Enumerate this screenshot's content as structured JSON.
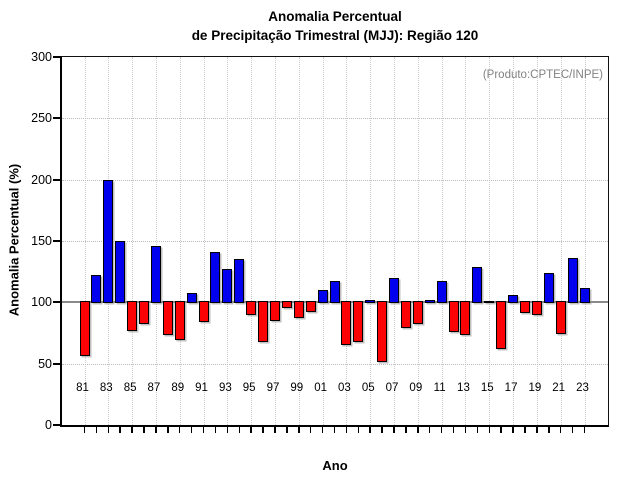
{
  "title": {
    "line1": "Anomalia Percentual",
    "line2": "de Precipitação Trimestral (MJJ): Região 120"
  },
  "annotation": "(Produto:CPTEC/INPE)",
  "chart_data": {
    "type": "bar",
    "title": "Anomalia Percentual de Precipitação Trimestral (MJJ): Região 120",
    "xlabel": "Ano",
    "ylabel": "Anomalia Percentual (%)",
    "ylim": [
      0,
      300
    ],
    "yticks": [
      0,
      50,
      100,
      150,
      200,
      250,
      300
    ],
    "baseline": 100,
    "grid": "dotted, horizontal at unlabeled 50s and vertical at odd years",
    "legend": "none",
    "annotation": "(Produto:CPTEC/INPE)",
    "colors": {
      "above_baseline": "#0000ee",
      "below_baseline": "#fb0304",
      "baseline_line": "#8a8a8a",
      "annotation_text": "#828282"
    },
    "years": [
      1981,
      1982,
      1983,
      1984,
      1985,
      1986,
      1987,
      1988,
      1989,
      1990,
      1991,
      1992,
      1993,
      1994,
      1995,
      1996,
      1997,
      1998,
      1999,
      2000,
      2001,
      2002,
      2003,
      2004,
      2005,
      2006,
      2007,
      2008,
      2009,
      2010,
      2011,
      2012,
      2013,
      2014,
      2015,
      2016,
      2017,
      2018,
      2019,
      2020,
      2021,
      2022,
      2023
    ],
    "x_tick_labels": [
      "81",
      "83",
      "85",
      "87",
      "89",
      "91",
      "93",
      "95",
      "97",
      "99",
      "01",
      "03",
      "05",
      "07",
      "09",
      "11",
      "13",
      "15",
      "17",
      "19",
      "21",
      "23"
    ],
    "values": [
      56,
      122,
      200,
      150,
      77,
      82,
      146,
      73,
      69,
      108,
      84,
      141,
      127,
      135,
      90,
      68,
      85,
      95,
      87,
      92,
      110,
      117,
      65,
      68,
      102,
      51,
      120,
      79,
      82,
      102,
      117,
      76,
      73,
      129,
      101,
      62,
      106,
      91,
      90,
      124,
      74,
      136,
      112
    ]
  }
}
